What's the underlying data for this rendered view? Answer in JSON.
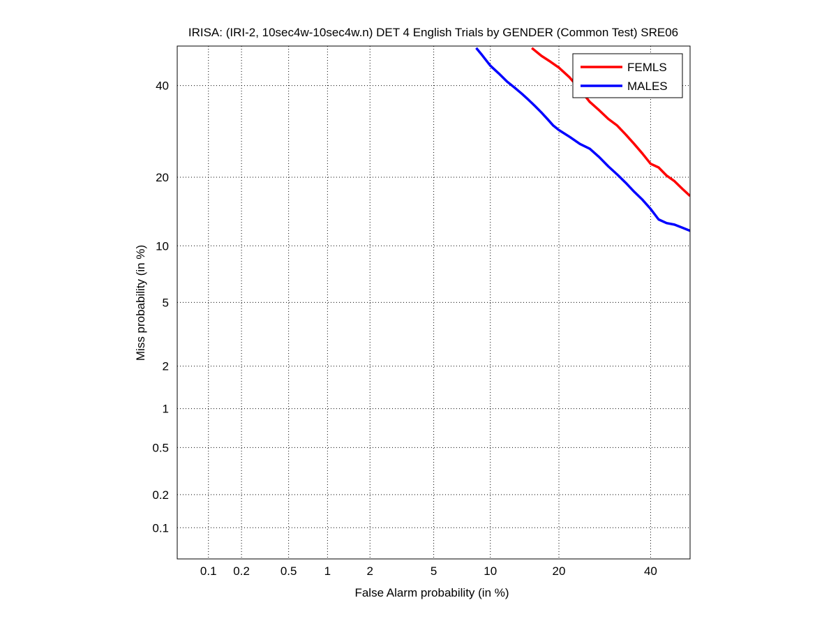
{
  "chart_data": {
    "type": "line",
    "scale": "normal-deviate (DET)",
    "title": "IRISA: (IRI-2, 10sec4w-10sec4w.n) DET 4 English Trials by GENDER (Common Test) SRE06",
    "xlabel": "False Alarm probability (in %)",
    "ylabel": "Miss probability (in %)",
    "xlim": [
      0.05,
      50
    ],
    "ylim": [
      0.05,
      50
    ],
    "x_ticks": [
      0.1,
      0.2,
      0.5,
      1,
      2,
      5,
      10,
      20,
      40
    ],
    "x_tick_labels": [
      "0.1",
      "0.2",
      "0.5",
      "1",
      "2",
      "5",
      "10",
      "20",
      "40"
    ],
    "y_ticks": [
      0.1,
      0.2,
      0.5,
      1,
      2,
      5,
      10,
      20,
      40
    ],
    "y_tick_labels": [
      "0.1",
      "0.2",
      "0.5",
      "1",
      "2",
      "5",
      "10",
      "20",
      "40"
    ],
    "grid": true,
    "legend_position": "top-right",
    "series": [
      {
        "name": "FEMLS",
        "color": "#ff0000",
        "x": [
          15.5,
          17,
          18.5,
          20,
          22,
          24,
          26,
          28,
          30,
          32,
          34,
          36,
          38,
          40,
          42,
          44,
          46,
          48,
          50
        ],
        "y": [
          49.5,
          47.5,
          46,
          44.5,
          42,
          39,
          36,
          34,
          32,
          30.5,
          28.5,
          26.5,
          24.5,
          22.5,
          21.8,
          20.3,
          19.3,
          18,
          16.8
        ]
      },
      {
        "name": "MALES",
        "color": "#0000ff",
        "x": [
          8.5,
          9,
          10,
          11,
          12,
          13,
          14,
          15,
          16,
          17,
          18,
          19,
          20,
          22,
          24,
          26,
          28,
          30,
          32,
          34,
          36,
          38,
          40,
          42,
          44,
          46,
          48,
          50
        ],
        "y": [
          49.5,
          48,
          45,
          43,
          41,
          39.5,
          38,
          36.5,
          35,
          33.5,
          32,
          30.5,
          29.5,
          28,
          26.5,
          25.5,
          23.8,
          22,
          20.5,
          19,
          17.5,
          16.2,
          14.8,
          13.3,
          12.8,
          12.6,
          12.2,
          11.8
        ]
      }
    ]
  }
}
